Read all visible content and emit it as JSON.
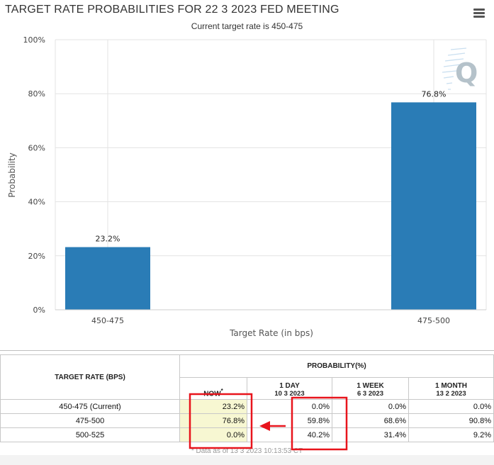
{
  "chart_data": {
    "type": "bar",
    "title": "TARGET RATE PROBABILITIES FOR 22 3 2023 FED MEETING",
    "subtitle": "Current target rate is 450-475",
    "categories": [
      "450-475",
      "475-500"
    ],
    "values": [
      23.2,
      76.8
    ],
    "data_labels": [
      "23.2%",
      "76.8%"
    ],
    "xlabel": "Target Rate (in bps)",
    "ylabel": "Probability",
    "ylim": [
      0,
      100
    ],
    "yticks": [
      0,
      20,
      40,
      60,
      80,
      100
    ],
    "ytick_labels": [
      "0%",
      "20%",
      "40%",
      "60%",
      "80%",
      "100%"
    ],
    "grid": true,
    "bar_color": "#2a7cb6"
  },
  "menu": {
    "icon": "hamburger-menu-icon"
  },
  "watermark": {
    "icon": "quikstrike-logo-icon",
    "letter": "Q"
  },
  "table": {
    "target_header": "TARGET RATE (BPS)",
    "probability_header": "PROBABILITY(%)",
    "columns": [
      {
        "label": "NOW",
        "note": "*",
        "date": ""
      },
      {
        "label": "1 DAY",
        "date": "10 3 2023"
      },
      {
        "label": "1 WEEK",
        "date": "6 3 2023"
      },
      {
        "label": "1 MONTH",
        "date": "13 2 2023"
      }
    ],
    "rows": [
      {
        "rate": "450-475 (Current)",
        "now": "23.2%",
        "day": "0.0%",
        "week": "0.0%",
        "month": "0.0%"
      },
      {
        "rate": "475-500",
        "now": "76.8%",
        "day": "59.8%",
        "week": "68.6%",
        "month": "90.8%"
      },
      {
        "rate": "500-525",
        "now": "0.0%",
        "day": "40.2%",
        "week": "31.4%",
        "month": "9.2%"
      }
    ],
    "footnote": "* Data as of 13 3 2023 10:13:53 CT"
  },
  "annotations": {
    "highlight_color": "#e8141c"
  }
}
